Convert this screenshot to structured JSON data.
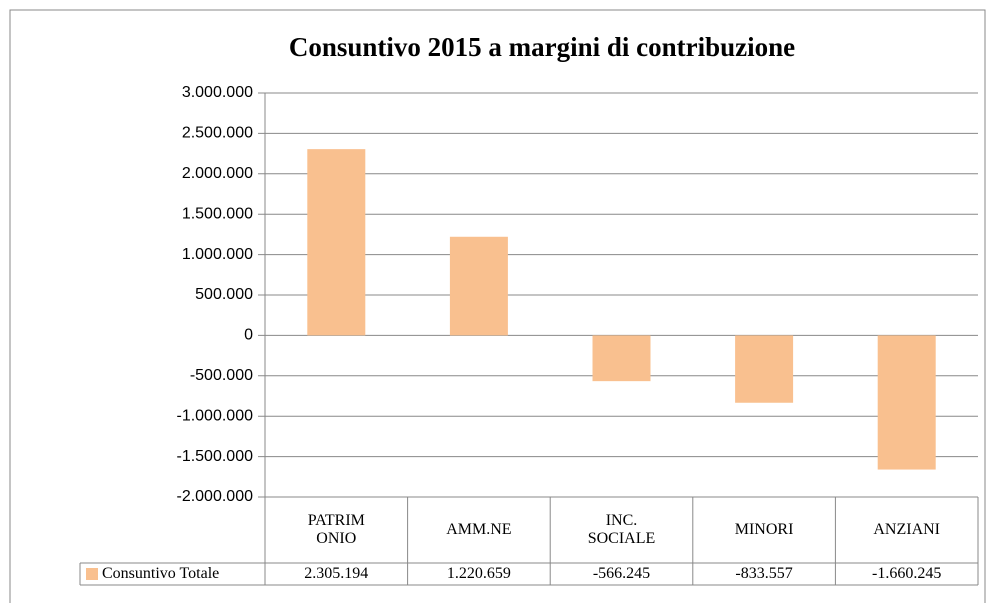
{
  "chart_data": {
    "type": "bar",
    "title": "Consuntivo 2015 a margini di contribuzione",
    "categories": [
      "PATRIM ONIO",
      "AMM.NE",
      "INC. SOCIALE",
      "MINORI",
      "ANZIANI"
    ],
    "series": [
      {
        "name": "Consuntivo Totale",
        "color": "#f9c08f",
        "values": [
          2305194,
          1220659,
          -566245,
          -833557,
          -1660245
        ],
        "value_labels": [
          "2.305.194",
          "1.220.659",
          "-566.245",
          "-833.557",
          "-1.660.245"
        ]
      }
    ],
    "ylim": [
      -2000000,
      3000000
    ],
    "yticks": [
      {
        "value": -2000000,
        "label": "-2.000.000"
      },
      {
        "value": -1500000,
        "label": "-1.500.000"
      },
      {
        "value": -1000000,
        "label": "-1.000.000"
      },
      {
        "value": -500000,
        "label": "-500.000"
      },
      0,
      {
        "value": 500000,
        "label": "500.000"
      },
      {
        "value": 1000000,
        "label": "1.000.000"
      },
      {
        "value": 1500000,
        "label": "1.500.000"
      },
      {
        "value": 2000000,
        "label": "2.000.000"
      },
      {
        "value": 2500000,
        "label": "2.500.000"
      },
      {
        "value": 3000000,
        "label": "3.000.000"
      }
    ],
    "grid": true
  }
}
